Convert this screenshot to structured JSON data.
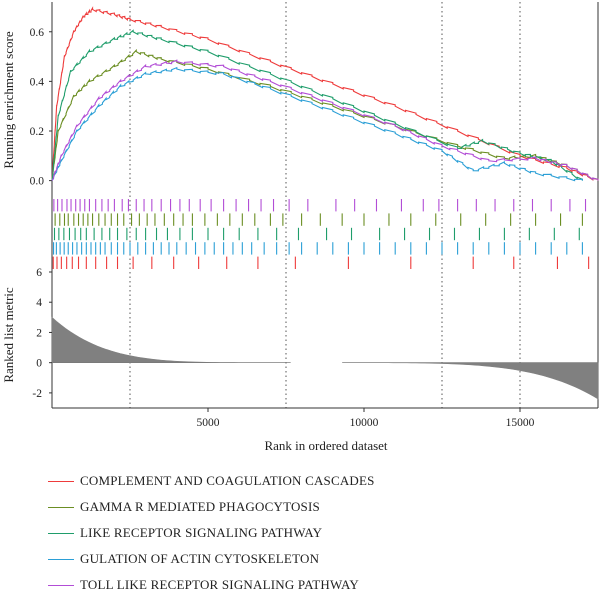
{
  "colors": {
    "complement": "#ee3b3b",
    "gamma": "#6b8e23",
    "like_receptor": "#1f9d6b",
    "actin": "#2b9fd6",
    "toll": "#b24dd6",
    "bars": "#808080",
    "grid": "#555555"
  },
  "chart_data": [
    {
      "type": "line",
      "panel": "running-enrichment-score",
      "ylabel": "Running enrichment score",
      "ylim": [
        -0.05,
        0.72
      ],
      "yticks": [
        "0.0",
        "0.2",
        "0.4",
        "0.6"
      ],
      "xlim": [
        0,
        17500
      ],
      "vlines": [
        2500,
        7500,
        12500,
        15000
      ],
      "series": [
        {
          "name": "COMPLEMENT AND COAGULATION CASCADES",
          "color_key": "complement",
          "x": [
            0,
            150,
            400,
            700,
            1000,
            1300,
            2000,
            2500,
            3500,
            5000,
            7000,
            9000,
            11000,
            13000,
            15000,
            16500,
            17500
          ],
          "y": [
            0.0,
            0.3,
            0.5,
            0.6,
            0.66,
            0.69,
            0.67,
            0.65,
            0.62,
            0.57,
            0.48,
            0.39,
            0.3,
            0.2,
            0.1,
            0.05,
            0.0
          ]
        },
        {
          "name": "GAMMA R MEDIATED PHAGOCYTOSIS",
          "color_key": "gamma",
          "x": [
            0,
            200,
            700,
            1200,
            2000,
            2700,
            3500,
            5000,
            7000,
            9000,
            11000,
            13000,
            14500,
            15500,
            16500,
            17500
          ],
          "y": [
            0.0,
            0.2,
            0.34,
            0.4,
            0.46,
            0.52,
            0.49,
            0.45,
            0.38,
            0.3,
            0.22,
            0.14,
            0.09,
            0.1,
            0.06,
            0.0
          ]
        },
        {
          "name": "LIKE RECEPTOR SIGNALING PATHWAY",
          "color_key": "like_receptor",
          "x": [
            0,
            200,
            600,
            1200,
            2000,
            2600,
            3500,
            5000,
            7000,
            9000,
            11000,
            13000,
            13800,
            15000,
            16000,
            17000
          ],
          "y": [
            0.0,
            0.26,
            0.44,
            0.52,
            0.57,
            0.6,
            0.57,
            0.52,
            0.43,
            0.33,
            0.23,
            0.13,
            0.16,
            0.11,
            0.08,
            0.0
          ]
        },
        {
          "name": "GULATION OF ACTIN CYTOSKELETON",
          "color_key": "actin",
          "x": [
            0,
            300,
            800,
            1500,
            2200,
            3000,
            4000,
            5500,
            7000,
            9000,
            11000,
            12500,
            13500,
            14500,
            15500,
            17000
          ],
          "y": [
            0.0,
            0.08,
            0.2,
            0.3,
            0.38,
            0.43,
            0.45,
            0.43,
            0.37,
            0.28,
            0.19,
            0.12,
            0.04,
            0.07,
            0.03,
            0.0
          ]
        },
        {
          "name": "TOLL LIKE RECEPTOR SIGNALING PATHWAY",
          "color_key": "toll",
          "x": [
            0,
            300,
            800,
            1500,
            2200,
            3000,
            4000,
            5500,
            7000,
            9000,
            11000,
            12500,
            14000,
            15500,
            16500,
            17500
          ],
          "y": [
            0.0,
            0.1,
            0.22,
            0.33,
            0.4,
            0.46,
            0.48,
            0.46,
            0.4,
            0.31,
            0.22,
            0.14,
            0.08,
            0.09,
            0.06,
            0.0
          ]
        }
      ]
    },
    {
      "type": "bar",
      "panel": "ranked-list-metric",
      "ylabel": "Ranked list metric",
      "xlabel": "Rank in ordered dataset",
      "ylim": [
        -3,
        6
      ],
      "yticks": [
        "6",
        "4",
        "2",
        "0",
        "-2"
      ],
      "xticks": [
        "5000",
        "10000",
        "15000"
      ],
      "xtick_values": [
        5000,
        10000,
        15000
      ],
      "xlim": [
        0,
        17500
      ],
      "zero_cross_rank": 8000,
      "metric_start": 3.0,
      "metric_end": -2.4
    }
  ],
  "hits": [
    {
      "color_key": "toll",
      "ranks": [
        60,
        180,
        320,
        480,
        610,
        760,
        900,
        1050,
        1200,
        1400,
        1600,
        1800,
        2000,
        2250,
        2450,
        2700,
        2950,
        3200,
        3500,
        3800,
        4100,
        4400,
        4750,
        5100,
        5500,
        5900,
        6300,
        6700,
        7100,
        7600,
        8200,
        9100,
        9700,
        10400,
        11200,
        11900,
        12400,
        13000,
        13600,
        14200,
        14800,
        15400,
        16000,
        16600,
        17100
      ]
    },
    {
      "color_key": "gamma",
      "ranks": [
        100,
        250,
        400,
        520,
        700,
        850,
        1000,
        1150,
        1300,
        1500,
        1700,
        1900,
        2100,
        2300,
        2550,
        2800,
        3050,
        3300,
        3600,
        3900,
        4200,
        4500,
        4900,
        5300,
        5700,
        6100,
        6500,
        7000,
        7400,
        8000,
        8600,
        9300,
        10000,
        10800,
        11500,
        12300,
        13100,
        13900,
        14700,
        15500,
        16300,
        17000
      ]
    },
    {
      "color_key": "like_receptor",
      "ranks": [
        80,
        220,
        380,
        560,
        740,
        920,
        1100,
        1350,
        1600,
        1850,
        2100,
        2400,
        2700,
        3000,
        3350,
        3700,
        4100,
        4500,
        5000,
        5500,
        6000,
        6600,
        7200,
        7900,
        8800,
        9600,
        10500,
        11300,
        12100,
        12900,
        13700,
        14500,
        15300,
        16100,
        16900
      ]
    },
    {
      "color_key": "actin",
      "ranks": [
        50,
        140,
        260,
        390,
        520,
        660,
        800,
        950,
        1100,
        1250,
        1400,
        1550,
        1700,
        1900,
        2100,
        2300,
        2500,
        2750,
        3000,
        3250,
        3500,
        3750,
        4000,
        4300,
        4600,
        4900,
        5200,
        5500,
        5800,
        6100,
        6400,
        6800,
        7200,
        7600,
        8000,
        8500,
        9000,
        9500,
        10000,
        10500,
        11000,
        11500,
        12000,
        12500,
        13000,
        13500,
        14000,
        14500,
        15000,
        15500,
        16000,
        16500,
        17000
      ]
    },
    {
      "color_key": "complement",
      "ranks": [
        40,
        160,
        300,
        470,
        650,
        850,
        1100,
        1400,
        1750,
        2100,
        2600,
        3200,
        3900,
        4700,
        5600,
        6600,
        7800,
        9500,
        11500,
        13500,
        14800,
        16200,
        17200
      ]
    }
  ],
  "legend": [
    {
      "label": "COMPLEMENT AND COAGULATION CASCADES",
      "color_key": "complement"
    },
    {
      "label": "GAMMA R MEDIATED PHAGOCYTOSIS",
      "color_key": "gamma"
    },
    {
      "label": "LIKE RECEPTOR SIGNALING PATHWAY",
      "color_key": "like_receptor"
    },
    {
      "label": "GULATION OF ACTIN CYTOSKELETON",
      "color_key": "actin"
    },
    {
      "label": "TOLL LIKE RECEPTOR SIGNALING PATHWAY",
      "color_key": "toll"
    }
  ]
}
